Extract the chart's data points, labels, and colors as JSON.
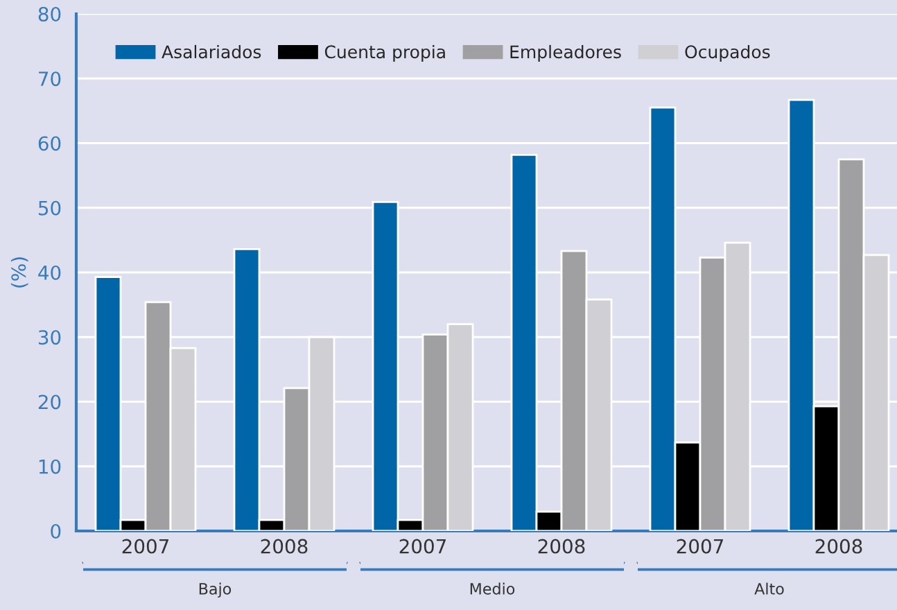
{
  "chart_data": {
    "type": "bar",
    "ylabel": "(%)",
    "categories": [
      "2007",
      "2008",
      "2007",
      "2008",
      "2007",
      "2008"
    ],
    "series": [
      {
        "name": "Asalariados",
        "color": "#0066a8",
        "values": [
          39.3,
          43.6,
          50.9,
          58.2,
          65.5,
          66.7
        ]
      },
      {
        "name": "Cuenta propia",
        "color": "#000000",
        "values": [
          1.7,
          1.7,
          1.7,
          3.0,
          13.7,
          19.3
        ]
      },
      {
        "name": "Empleadores",
        "color": "#a0a0a2",
        "values": [
          35.4,
          22.1,
          30.4,
          43.3,
          42.3,
          57.5
        ]
      },
      {
        "name": "Ocupados",
        "color": "#d0d0d4",
        "values": [
          28.3,
          30.0,
          32.0,
          35.8,
          44.6,
          42.7
        ]
      }
    ],
    "ylim": [
      0,
      80
    ],
    "yticks": [
      0,
      10,
      20,
      30,
      40,
      50,
      60,
      70,
      80
    ],
    "grid": "y",
    "legend": "top left",
    "annotations": [
      "Bajo",
      "Medio",
      "Alto"
    ]
  }
}
